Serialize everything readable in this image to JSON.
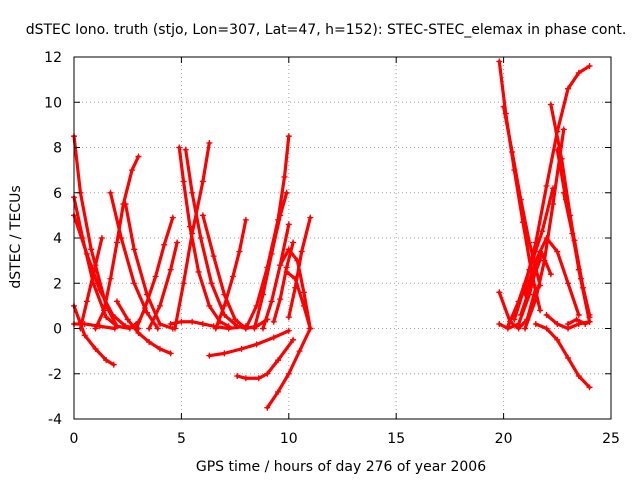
{
  "chart_data": {
    "type": "scatter",
    "title": "dSTEC Iono. truth (stjo, Lon=307, Lat=47, h=152): STEC-STEC_elemax in phase cont.",
    "xlabel": "GPS time / hours of day 276 of year 2006",
    "ylabel": "dSTEC  / TECUs",
    "xlim": [
      0,
      25
    ],
    "ylim": [
      -4,
      12
    ],
    "xticks": [
      0,
      5,
      10,
      15,
      20,
      25
    ],
    "yticks": [
      -4,
      -2,
      0,
      2,
      4,
      6,
      8,
      10,
      12
    ],
    "grid": true,
    "legend": "none",
    "marker": "plus",
    "color": "#ff0000",
    "series": [
      {
        "x": [
          0.0,
          0.5,
          1.0,
          1.5,
          1.85
        ],
        "y": [
          1.0,
          -0.3,
          -0.9,
          -1.4,
          -1.6
        ]
      },
      {
        "x": [
          0.0,
          0.3,
          0.8,
          1.5,
          2.0,
          2.6,
          3.0
        ],
        "y": [
          8.5,
          6.0,
          3.5,
          1.0,
          0.1,
          0.0,
          0.3
        ]
      },
      {
        "x": [
          0.0,
          0.4,
          0.9,
          1.5,
          2.0
        ],
        "y": [
          5.8,
          4.0,
          2.0,
          0.5,
          0.1
        ]
      },
      {
        "x": [
          0.0,
          0.6,
          1.2,
          1.8,
          2.4,
          3.0
        ],
        "y": [
          5.0,
          3.3,
          1.7,
          0.6,
          0.1,
          0.0
        ]
      },
      {
        "x": [
          0.0,
          0.5,
          1.2,
          1.9
        ],
        "y": [
          0.2,
          0.2,
          0.1,
          0.0
        ]
      },
      {
        "x": [
          0.3,
          0.6,
          1.0,
          1.3
        ],
        "y": [
          0.0,
          1.2,
          2.8,
          4.0
        ]
      },
      {
        "x": [
          1.0,
          1.4,
          1.7,
          2.0,
          2.3,
          2.7,
          3.0
        ],
        "y": [
          0.0,
          0.8,
          2.2,
          3.8,
          5.5,
          7.0,
          7.6
        ]
      },
      {
        "x": [
          1.7,
          2.2,
          2.8,
          3.4,
          3.9
        ],
        "y": [
          6.0,
          4.0,
          2.0,
          0.7,
          0.0
        ]
      },
      {
        "x": [
          2.4,
          2.8,
          3.4,
          4.0,
          4.6
        ],
        "y": [
          5.5,
          3.5,
          1.5,
          0.2,
          0.0
        ]
      },
      {
        "x": [
          2.0,
          2.5,
          3.0,
          3.5,
          4.0,
          4.5
        ],
        "y": [
          1.2,
          0.4,
          -0.2,
          -0.6,
          -0.9,
          -1.1
        ]
      },
      {
        "x": [
          2.9,
          3.3,
          3.8,
          4.2,
          4.6
        ],
        "y": [
          0.0,
          0.9,
          2.3,
          3.7,
          4.9
        ]
      },
      {
        "x": [
          3.5,
          4.0,
          4.5,
          4.8
        ],
        "y": [
          0.0,
          1.0,
          2.6,
          3.8
        ]
      },
      {
        "x": [
          4.5,
          5.0,
          5.5,
          6.0,
          6.5,
          7.2,
          8.0
        ],
        "y": [
          0.2,
          0.3,
          0.3,
          0.2,
          0.1,
          0.0,
          0.1
        ]
      },
      {
        "x": [
          4.9,
          5.1,
          5.4,
          5.8,
          6.3,
          6.8,
          7.2
        ],
        "y": [
          8.0,
          6.5,
          4.5,
          2.5,
          1.0,
          0.3,
          0.1
        ]
      },
      {
        "x": [
          5.2,
          5.5,
          5.9,
          6.4,
          7.0,
          7.6,
          8.0
        ],
        "y": [
          7.9,
          6.0,
          4.0,
          2.0,
          0.6,
          0.1,
          0.0
        ]
      },
      {
        "x": [
          4.7,
          5.1,
          5.5,
          6.0,
          6.3
        ],
        "y": [
          0.0,
          2.0,
          4.2,
          6.5,
          8.2
        ]
      },
      {
        "x": [
          6.0,
          6.5,
          7.0,
          7.5,
          8.0,
          8.5,
          9.0
        ],
        "y": [
          5.0,
          3.2,
          1.5,
          0.4,
          0.0,
          0.1,
          0.4
        ]
      },
      {
        "x": [
          6.6,
          7.0,
          7.4,
          7.7,
          8.0
        ],
        "y": [
          0.0,
          1.0,
          2.3,
          3.4,
          4.8
        ]
      },
      {
        "x": [
          6.3,
          7.0,
          7.8,
          8.5,
          9.3,
          10.0
        ],
        "y": [
          -1.2,
          -1.1,
          -0.9,
          -0.7,
          -0.4,
          -0.1
        ]
      },
      {
        "x": [
          7.6,
          8.0,
          8.6,
          9.0,
          9.5,
          10.2
        ],
        "y": [
          -2.1,
          -2.2,
          -2.2,
          -2.0,
          -1.4,
          -0.5
        ]
      },
      {
        "x": [
          9.0,
          9.5,
          10.0,
          10.5,
          11.0
        ],
        "y": [
          -3.5,
          -2.8,
          -2.0,
          -1.0,
          0.0
        ]
      },
      {
        "x": [
          8.0,
          8.5,
          9.0,
          9.5,
          9.8,
          10.0
        ],
        "y": [
          0.0,
          1.0,
          2.7,
          4.8,
          6.7,
          8.5
        ]
      },
      {
        "x": [
          8.4,
          8.8,
          9.2,
          9.6,
          9.9
        ],
        "y": [
          0.0,
          1.5,
          3.3,
          5.0,
          6.0
        ]
      },
      {
        "x": [
          8.8,
          9.2,
          9.6,
          10.0
        ],
        "y": [
          0.0,
          1.2,
          2.8,
          4.6
        ]
      },
      {
        "x": [
          9.3,
          9.6,
          9.9,
          10.2
        ],
        "y": [
          0.3,
          1.3,
          2.7,
          3.8
        ]
      },
      {
        "x": [
          10.0,
          10.3,
          10.6,
          11.0
        ],
        "y": [
          0.5,
          1.8,
          3.4,
          4.9
        ]
      },
      {
        "x": [
          9.6,
          10.0,
          10.4,
          10.7,
          11.0
        ],
        "y": [
          2.8,
          3.5,
          3.0,
          1.6,
          0.0
        ]
      },
      {
        "x": [
          9.9,
          10.3,
          10.7,
          11.0
        ],
        "y": [
          2.5,
          2.2,
          1.0,
          0.0
        ]
      },
      {
        "x": [
          19.8,
          20.2,
          20.7,
          21.2,
          21.7
        ],
        "y": [
          0.2,
          0.0,
          0.2,
          1.5,
          3.4
        ]
      },
      {
        "x": [
          19.8,
          20.1,
          20.5,
          20.9,
          21.3,
          21.7
        ],
        "y": [
          11.8,
          9.5,
          7.0,
          4.7,
          2.5,
          0.8
        ]
      },
      {
        "x": [
          20.0,
          20.4,
          20.8,
          21.2,
          21.7
        ],
        "y": [
          9.8,
          7.8,
          5.7,
          3.8,
          1.9
        ]
      },
      {
        "x": [
          19.8,
          20.3,
          20.7,
          21.1,
          21.5
        ],
        "y": [
          1.6,
          0.3,
          0.0,
          0.4,
          1.8
        ]
      },
      {
        "x": [
          20.2,
          20.7,
          21.2,
          21.8,
          22.3
        ],
        "y": [
          0.1,
          1.2,
          2.6,
          4.3,
          6.2
        ]
      },
      {
        "x": [
          20.5,
          21.0,
          21.5,
          22.0,
          22.5,
          23.0,
          23.5,
          24.0
        ],
        "y": [
          0.4,
          1.9,
          3.8,
          6.3,
          8.7,
          10.6,
          11.3,
          11.6
        ]
      },
      {
        "x": [
          21.0,
          21.5,
          21.9,
          22.3,
          22.8
        ],
        "y": [
          0.0,
          1.3,
          3.0,
          5.5,
          8.8
        ]
      },
      {
        "x": [
          20.8,
          21.3,
          21.8,
          22.2
        ],
        "y": [
          0.6,
          2.0,
          3.3,
          2.4
        ]
      },
      {
        "x": [
          21.0,
          21.5,
          22.0,
          22.5,
          23.0,
          23.5
        ],
        "y": [
          1.5,
          3.0,
          4.0,
          3.4,
          2.0,
          0.6
        ]
      },
      {
        "x": [
          21.5,
          22.0,
          22.5,
          23.0,
          23.5,
          24.0
        ],
        "y": [
          0.2,
          0.0,
          -0.5,
          -1.3,
          -2.1,
          -2.6
        ]
      },
      {
        "x": [
          22.2,
          22.7,
          23.1,
          23.5,
          24.0
        ],
        "y": [
          9.9,
          7.5,
          5.0,
          2.6,
          0.3
        ]
      },
      {
        "x": [
          22.5,
          22.9,
          23.3,
          23.7,
          24.0
        ],
        "y": [
          7.9,
          5.7,
          3.9,
          1.8,
          0.5
        ]
      },
      {
        "x": [
          22.8,
          23.2,
          23.6,
          24.0
        ],
        "y": [
          6.0,
          4.2,
          2.2,
          0.6
        ]
      },
      {
        "x": [
          23.0,
          23.4,
          23.8,
          24.0
        ],
        "y": [
          0.2,
          0.4,
          0.2,
          0.3
        ]
      },
      {
        "x": [
          22.0,
          22.5,
          23.0,
          23.5,
          24.0
        ],
        "y": [
          0.6,
          0.2,
          0.0,
          0.2,
          0.3
        ]
      }
    ]
  }
}
